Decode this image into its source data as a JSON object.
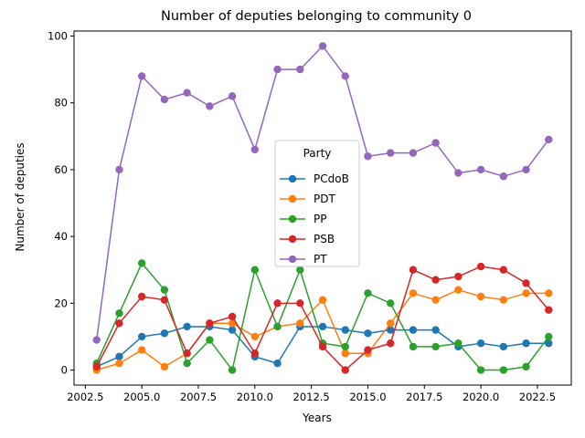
{
  "chart_data": {
    "type": "line",
    "title": "Number of deputies belonging to community 0",
    "xlabel": "Years",
    "ylabel": "Number of deputies",
    "xlim": [
      2002.0,
      2024.0
    ],
    "ylim": [
      -4.5,
      101.5
    ],
    "xticks": [
      2002.5,
      2005.0,
      2007.5,
      2010.0,
      2012.5,
      2015.0,
      2017.5,
      2020.0,
      2022.5
    ],
    "xtick_labels": [
      "2002.5",
      "2005.0",
      "2007.5",
      "2010.0",
      "2012.5",
      "2015.0",
      "2017.5",
      "2020.0",
      "2022.5"
    ],
    "yticks": [
      0,
      20,
      40,
      60,
      80,
      100
    ],
    "ytick_labels": [
      "0",
      "20",
      "40",
      "60",
      "80",
      "100"
    ],
    "grid": false,
    "legend": {
      "title": "Party",
      "placement": "center"
    },
    "x": [
      2003,
      2004,
      2005,
      2006,
      2007,
      2008,
      2009,
      2010,
      2011,
      2012,
      2013,
      2014,
      2015,
      2016,
      2017,
      2018,
      2019,
      2020,
      2021,
      2022,
      2023
    ],
    "series": [
      {
        "name": "PCdoB",
        "color": "#1f77b4",
        "values": [
          1,
          4,
          10,
          11,
          13,
          13,
          12,
          4,
          2,
          13,
          13,
          12,
          11,
          12,
          12,
          12,
          7,
          8,
          7,
          8,
          8
        ]
      },
      {
        "name": "PDT",
        "color": "#ff7f0e",
        "values": [
          0,
          2,
          6,
          1,
          5,
          14,
          14,
          10,
          13,
          14,
          21,
          5,
          5,
          14,
          23,
          21,
          24,
          22,
          21,
          23,
          23
        ]
      },
      {
        "name": "PP",
        "color": "#2ca02c",
        "values": [
          2,
          17,
          32,
          24,
          2,
          9,
          0,
          30,
          13,
          30,
          8,
          7,
          23,
          20,
          7,
          7,
          8,
          0,
          0,
          1,
          10
        ]
      },
      {
        "name": "PSB",
        "color": "#d62728",
        "values": [
          1,
          14,
          22,
          21,
          5,
          14,
          16,
          5,
          20,
          20,
          7,
          0,
          6,
          8,
          30,
          27,
          28,
          31,
          30,
          26,
          18
        ]
      },
      {
        "name": "PT",
        "color": "#9467bd",
        "values": [
          9,
          60,
          88,
          81,
          83,
          79,
          82,
          66,
          90,
          90,
          97,
          88,
          64,
          65,
          65,
          68,
          59,
          60,
          58,
          60,
          69
        ]
      }
    ]
  }
}
